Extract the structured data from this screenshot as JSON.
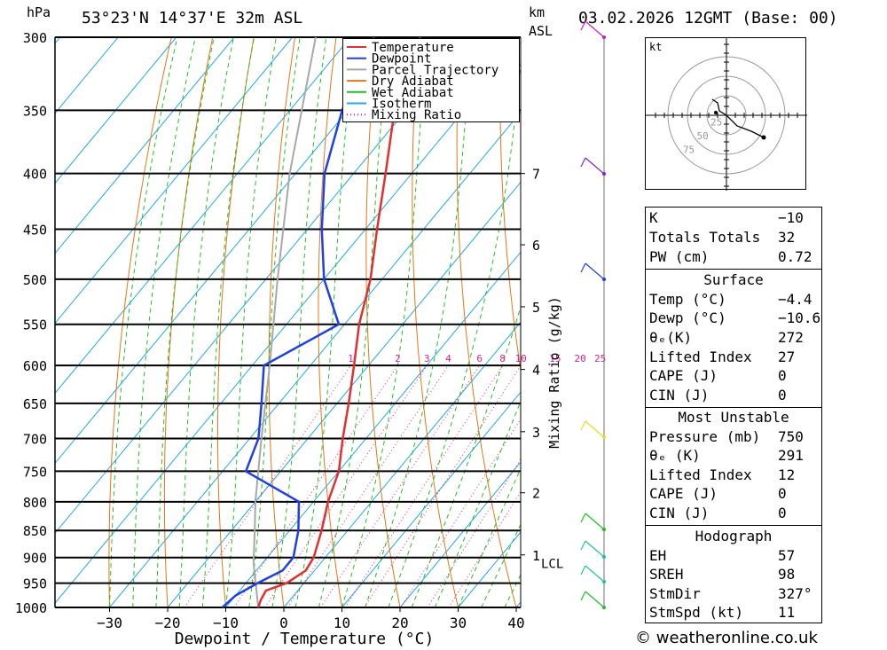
{
  "header": {
    "location": "53°23'N 14°37'E 32m ASL",
    "datetime": "03.02.2026 12GMT (Base: 00)",
    "left_unit": "hPa",
    "km_unit": "km",
    "asl_unit": "ASL"
  },
  "chart_data": {
    "type": "skew-t log-p",
    "xlabel": "Dewpoint / Temperature (°C)",
    "ylabel_left": "hPa",
    "ylabel_right": "Mixing Ratio (g/kg)",
    "x_ticks": [
      -30,
      -20,
      -10,
      0,
      10,
      20,
      30,
      40
    ],
    "x_tick_labels": [
      "−30",
      "−20",
      "−10",
      "0",
      "10",
      "20",
      "30",
      "40"
    ],
    "pressure_levels": [
      300,
      350,
      400,
      450,
      500,
      550,
      600,
      650,
      700,
      750,
      800,
      850,
      900,
      950,
      1000
    ],
    "altitude_km_labels": [
      {
        "km": "7",
        "pressure": 400
      },
      {
        "km": "6",
        "pressure": 465
      },
      {
        "km": "5",
        "pressure": 530
      },
      {
        "km": "4",
        "pressure": 605
      },
      {
        "km": "3",
        "pressure": 690
      },
      {
        "km": "2",
        "pressure": 785
      },
      {
        "km": "1",
        "pressure": 895
      }
    ],
    "lcl_label": "LCL",
    "lcl_pressure": 910,
    "mixing_ratio_labels": [
      "1",
      "2",
      "3",
      "4",
      "6",
      "8",
      "10",
      "15",
      "20",
      "25"
    ],
    "mixing_ratio_values": [
      1,
      2,
      3,
      4,
      6,
      8,
      10,
      15,
      20,
      25
    ],
    "legend": [
      "Temperature",
      "Dewpoint",
      "Parcel Trajectory",
      "Dry Adiabat",
      "Wet Adiabat",
      "Isotherm",
      "Mixing Ratio"
    ],
    "colors": {
      "temperature": "#e03030",
      "dewpoint": "#2040e0",
      "parcel": "#a8a8a8",
      "dry_adiabat": "#e07818",
      "wet_adiabat": "#20c020",
      "isotherm": "#20a8e8",
      "mixing_ratio": "#e0208c"
    },
    "temperature_profile": [
      {
        "p": 1000,
        "t": -4.4
      },
      {
        "p": 985,
        "t": -5.0
      },
      {
        "p": 965,
        "t": -5.5
      },
      {
        "p": 950,
        "t": -3.0
      },
      {
        "p": 925,
        "t": -1.5
      },
      {
        "p": 900,
        "t": -2.0
      },
      {
        "p": 850,
        "t": -4.5
      },
      {
        "p": 800,
        "t": -7.5
      },
      {
        "p": 750,
        "t": -10.0
      },
      {
        "p": 700,
        "t": -14.0
      },
      {
        "p": 650,
        "t": -18.0
      },
      {
        "p": 600,
        "t": -22.5
      },
      {
        "p": 550,
        "t": -27.5
      },
      {
        "p": 500,
        "t": -32.0
      },
      {
        "p": 450,
        "t": -38.0
      },
      {
        "p": 400,
        "t": -44.5
      },
      {
        "p": 350,
        "t": -52.0
      },
      {
        "p": 300,
        "t": -58.0
      }
    ],
    "dewpoint_profile": [
      {
        "p": 1000,
        "td": -10.6
      },
      {
        "p": 975,
        "td": -10.0
      },
      {
        "p": 950,
        "td": -8.0
      },
      {
        "p": 925,
        "td": -5.5
      },
      {
        "p": 900,
        "td": -5.5
      },
      {
        "p": 850,
        "td": -8.5
      },
      {
        "p": 800,
        "td": -12.5
      },
      {
        "p": 750,
        "td": -26.0
      },
      {
        "p": 700,
        "td": -28.5
      },
      {
        "p": 650,
        "td": -33.0
      },
      {
        "p": 600,
        "td": -38.0
      },
      {
        "p": 550,
        "td": -31.0
      },
      {
        "p": 500,
        "td": -40.0
      },
      {
        "p": 450,
        "td": -47.5
      },
      {
        "p": 400,
        "td": -55.0
      },
      {
        "p": 350,
        "td": -61.0
      },
      {
        "p": 300,
        "td": -66.0
      }
    ],
    "parcel_profile": [
      {
        "p": 1000,
        "t": -4.4
      },
      {
        "p": 910,
        "t": -11.6
      },
      {
        "p": 850,
        "t": -16.0
      },
      {
        "p": 800,
        "t": -20.0
      },
      {
        "p": 700,
        "t": -28.0
      },
      {
        "p": 600,
        "t": -37.0
      },
      {
        "p": 500,
        "t": -48.0
      },
      {
        "p": 400,
        "t": -61.0
      },
      {
        "p": 300,
        "t": -76.0
      }
    ]
  },
  "hodograph": {
    "unit_label": "kt",
    "ring_labels": [
      "25",
      "50",
      "75"
    ]
  },
  "table": {
    "k_label": "K",
    "k_value": "−10",
    "tt_label": "Totals Totals",
    "tt_value": "32",
    "pw_label": "PW (cm)",
    "pw_value": "0.72",
    "surface_title": "Surface",
    "temp_label": "Temp (°C)",
    "temp_value": "−4.4",
    "dewp_label": "Dewp (°C)",
    "dewp_value": "−10.6",
    "thetae_label": "θₑ(K)",
    "thetae_value": "272",
    "li_label": "Lifted Index",
    "li_value": "27",
    "cape_label": "CAPE (J)",
    "cape_value": "0",
    "cin_label": "CIN (J)",
    "cin_value": "0",
    "mu_title": "Most Unstable",
    "mu_pressure_label": "Pressure (mb)",
    "mu_pressure_value": "750",
    "mu_thetae_label": "θₑ (K)",
    "mu_thetae_value": "291",
    "mu_li_label": "Lifted Index",
    "mu_li_value": "12",
    "mu_cape_label": "CAPE (J)",
    "mu_cape_value": "0",
    "mu_cin_label": "CIN (J)",
    "mu_cin_value": "0",
    "hodo_title": "Hodograph",
    "eh_label": "EH",
    "eh_value": "57",
    "sreh_label": "SREH",
    "sreh_value": "98",
    "stmdir_label": "StmDir",
    "stmdir_value": "327°",
    "stmspd_label": "StmSpd (kt)",
    "stmspd_value": "11"
  },
  "footer": {
    "copyright": "© weatheronline.co.uk"
  }
}
